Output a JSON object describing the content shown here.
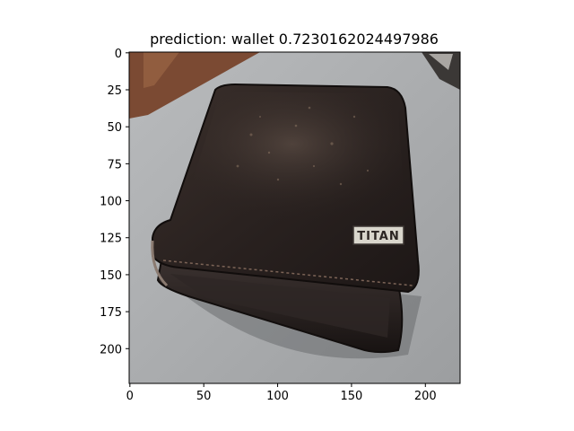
{
  "chart_data": {
    "type": "image",
    "title": "prediction: wallet 0.7230162024497986",
    "xlabel": "",
    "ylabel": "",
    "xlim": [
      -0.5,
      223.5
    ],
    "ylim": [
      223.5,
      -0.5
    ],
    "x_ticks": [
      0,
      50,
      100,
      150,
      200
    ],
    "y_ticks": [
      0,
      25,
      50,
      75,
      100,
      125,
      150,
      175,
      200
    ],
    "grid": false,
    "image": {
      "subject": "wallet",
      "logo_text": "TITAN",
      "colors": {
        "background": "#a7a9ab",
        "table_edge": "#7b4a33",
        "leather": "#2a2220",
        "leather_highlight": "#4a3c36",
        "logo_plate": "#d9d6cc"
      }
    }
  }
}
